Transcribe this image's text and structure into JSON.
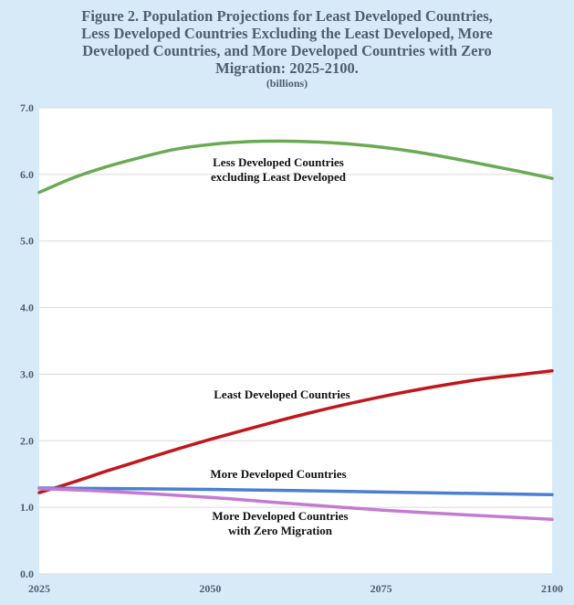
{
  "chart_data": {
    "type": "line",
    "title_lines": [
      "Figure 2. Population Projections for Least Developed Countries,",
      "Less Developed Countries Excluding the Least Developed, More",
      "Developed Countries, and More Developed Countries with Zero",
      "Migration: 2025-2100."
    ],
    "subtitle": "(billions)",
    "xlim": [
      2025,
      2100
    ],
    "ylim": [
      0,
      7
    ],
    "x_ticks": [
      "2025",
      "2050",
      "2075",
      "2100"
    ],
    "y_ticks": [
      "0.0",
      "1.0",
      "2.0",
      "3.0",
      "4.0",
      "5.0",
      "6.0",
      "7.0"
    ],
    "grid": "horizontal",
    "series": [
      {
        "label_lines": [
          "Less Developed Countries",
          "excluding Least Developed"
        ],
        "color": "#6aaa55",
        "x": [
          2025,
          2030,
          2035,
          2040,
          2045,
          2050,
          2055,
          2060,
          2065,
          2070,
          2075,
          2080,
          2085,
          2090,
          2095,
          2100
        ],
        "y": [
          5.73,
          5.95,
          6.12,
          6.26,
          6.38,
          6.45,
          6.49,
          6.5,
          6.49,
          6.46,
          6.41,
          6.34,
          6.25,
          6.15,
          6.05,
          5.94
        ]
      },
      {
        "label_lines": [
          "Least Developed Countries"
        ],
        "color": "#c0171d",
        "x": [
          2025,
          2030,
          2035,
          2040,
          2045,
          2050,
          2055,
          2060,
          2065,
          2070,
          2075,
          2080,
          2085,
          2090,
          2095,
          2100
        ],
        "y": [
          1.22,
          1.38,
          1.55,
          1.71,
          1.87,
          2.02,
          2.16,
          2.3,
          2.43,
          2.55,
          2.66,
          2.76,
          2.85,
          2.93,
          2.99,
          3.05
        ]
      },
      {
        "label_lines": [
          "More Developed Countries"
        ],
        "color": "#4a7fd4",
        "x": [
          2025,
          2050,
          2075,
          2100
        ],
        "y": [
          1.29,
          1.27,
          1.23,
          1.19
        ]
      },
      {
        "label_lines": [
          "More Developed Countries",
          "with Zero Migration"
        ],
        "color": "#c57ad2",
        "x": [
          2025,
          2035,
          2050,
          2060,
          2075,
          2085,
          2100
        ],
        "y": [
          1.28,
          1.24,
          1.15,
          1.07,
          0.96,
          0.9,
          0.82
        ]
      }
    ]
  }
}
